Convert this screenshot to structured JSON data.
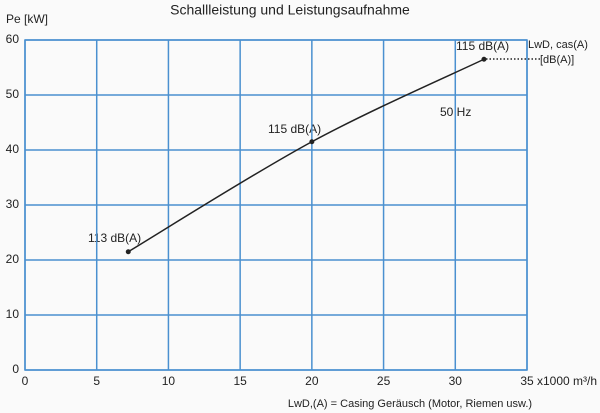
{
  "chart_data": {
    "type": "line",
    "title": "Schallleistung und Leistungsaufnahme",
    "y_label": "Pe [kW]",
    "x_label": "x1000 m³/h",
    "x": [
      7.2,
      20,
      32
    ],
    "series": [
      {
        "color": "#222222",
        "values": [
          21.5,
          41.5,
          56.5
        ]
      }
    ],
    "xlim": [
      0,
      35
    ],
    "xticks": [
      0,
      5,
      10,
      15,
      20,
      25,
      30,
      35
    ],
    "ylim": [
      0,
      60
    ],
    "yticks": [
      0,
      10,
      20,
      30,
      40,
      50,
      60
    ],
    "grid": true,
    "grid_color": "#4a90d0",
    "annotations": [
      "113 dB(A)",
      "115 dB(A)",
      "115 dB(A)",
      "50 Hz",
      "LwD, cas(A)",
      "[dB(A)]"
    ],
    "footnote": "LwD,(A) = Casing Geräusch (Motor, Riemen usw.)"
  }
}
